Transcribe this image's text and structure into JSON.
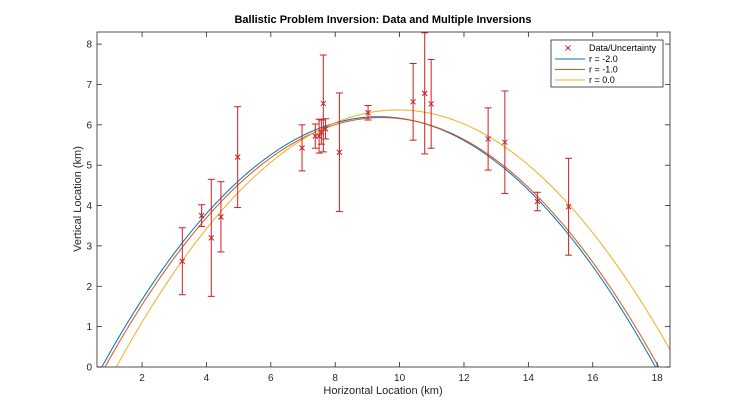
{
  "chart_data": {
    "type": "scatter",
    "title": "Ballistic Problem Inversion: Data and Multiple Inversions",
    "xlabel": "Horizontal Location (km)",
    "ylabel": "Vertical Location (km)",
    "xlim": [
      0.6,
      18.4
    ],
    "ylim": [
      0,
      8.3
    ],
    "xticks": [
      2,
      4,
      6,
      8,
      10,
      12,
      14,
      16,
      18
    ],
    "yticks": [
      0,
      1,
      2,
      3,
      4,
      5,
      6,
      7,
      8
    ],
    "grid": false,
    "legend_position": "top-right",
    "data": {
      "name": "Data/Uncertainty",
      "color": "#cc1f1f",
      "marker": "x",
      "points": [
        {
          "x": 3.25,
          "y": 2.62,
          "err": 0.83
        },
        {
          "x": 3.85,
          "y": 3.75,
          "err": 0.27
        },
        {
          "x": 4.15,
          "y": 3.2,
          "err": 1.45
        },
        {
          "x": 4.45,
          "y": 3.72,
          "err": 0.87
        },
        {
          "x": 4.97,
          "y": 5.2,
          "err": 1.25
        },
        {
          "x": 6.97,
          "y": 5.43,
          "err": 0.57
        },
        {
          "x": 7.38,
          "y": 5.72,
          "err": 0.3
        },
        {
          "x": 7.5,
          "y": 5.72,
          "err": 0.42
        },
        {
          "x": 7.57,
          "y": 5.82,
          "err": 0.3
        },
        {
          "x": 7.63,
          "y": 6.53,
          "err": 1.2
        },
        {
          "x": 7.7,
          "y": 5.9,
          "err": 0.25
        },
        {
          "x": 8.13,
          "y": 5.32,
          "err": 1.47
        },
        {
          "x": 9.02,
          "y": 6.3,
          "err": 0.18
        },
        {
          "x": 10.42,
          "y": 6.57,
          "err": 0.95
        },
        {
          "x": 10.78,
          "y": 6.78,
          "err": 1.5
        },
        {
          "x": 10.98,
          "y": 6.52,
          "err": 1.1
        },
        {
          "x": 12.75,
          "y": 5.65,
          "err": 0.77
        },
        {
          "x": 13.27,
          "y": 5.57,
          "err": 1.27
        },
        {
          "x": 14.28,
          "y": 4.1,
          "err": 0.23
        },
        {
          "x": 15.25,
          "y": 3.97,
          "err": 1.2
        }
      ]
    },
    "series": [
      {
        "name": "r = -2.0",
        "color": "#0072bd",
        "x0": 0.75,
        "x1": 17.95,
        "peak": 6.2
      },
      {
        "name": "r = -1.0",
        "color": "#d95319",
        "x0": 0.85,
        "x1": 18.05,
        "peak": 6.18
      },
      {
        "name": "r = 0.0",
        "color": "#edb120",
        "x0": 1.2,
        "x1": 18.7,
        "peak": 6.37
      }
    ]
  }
}
